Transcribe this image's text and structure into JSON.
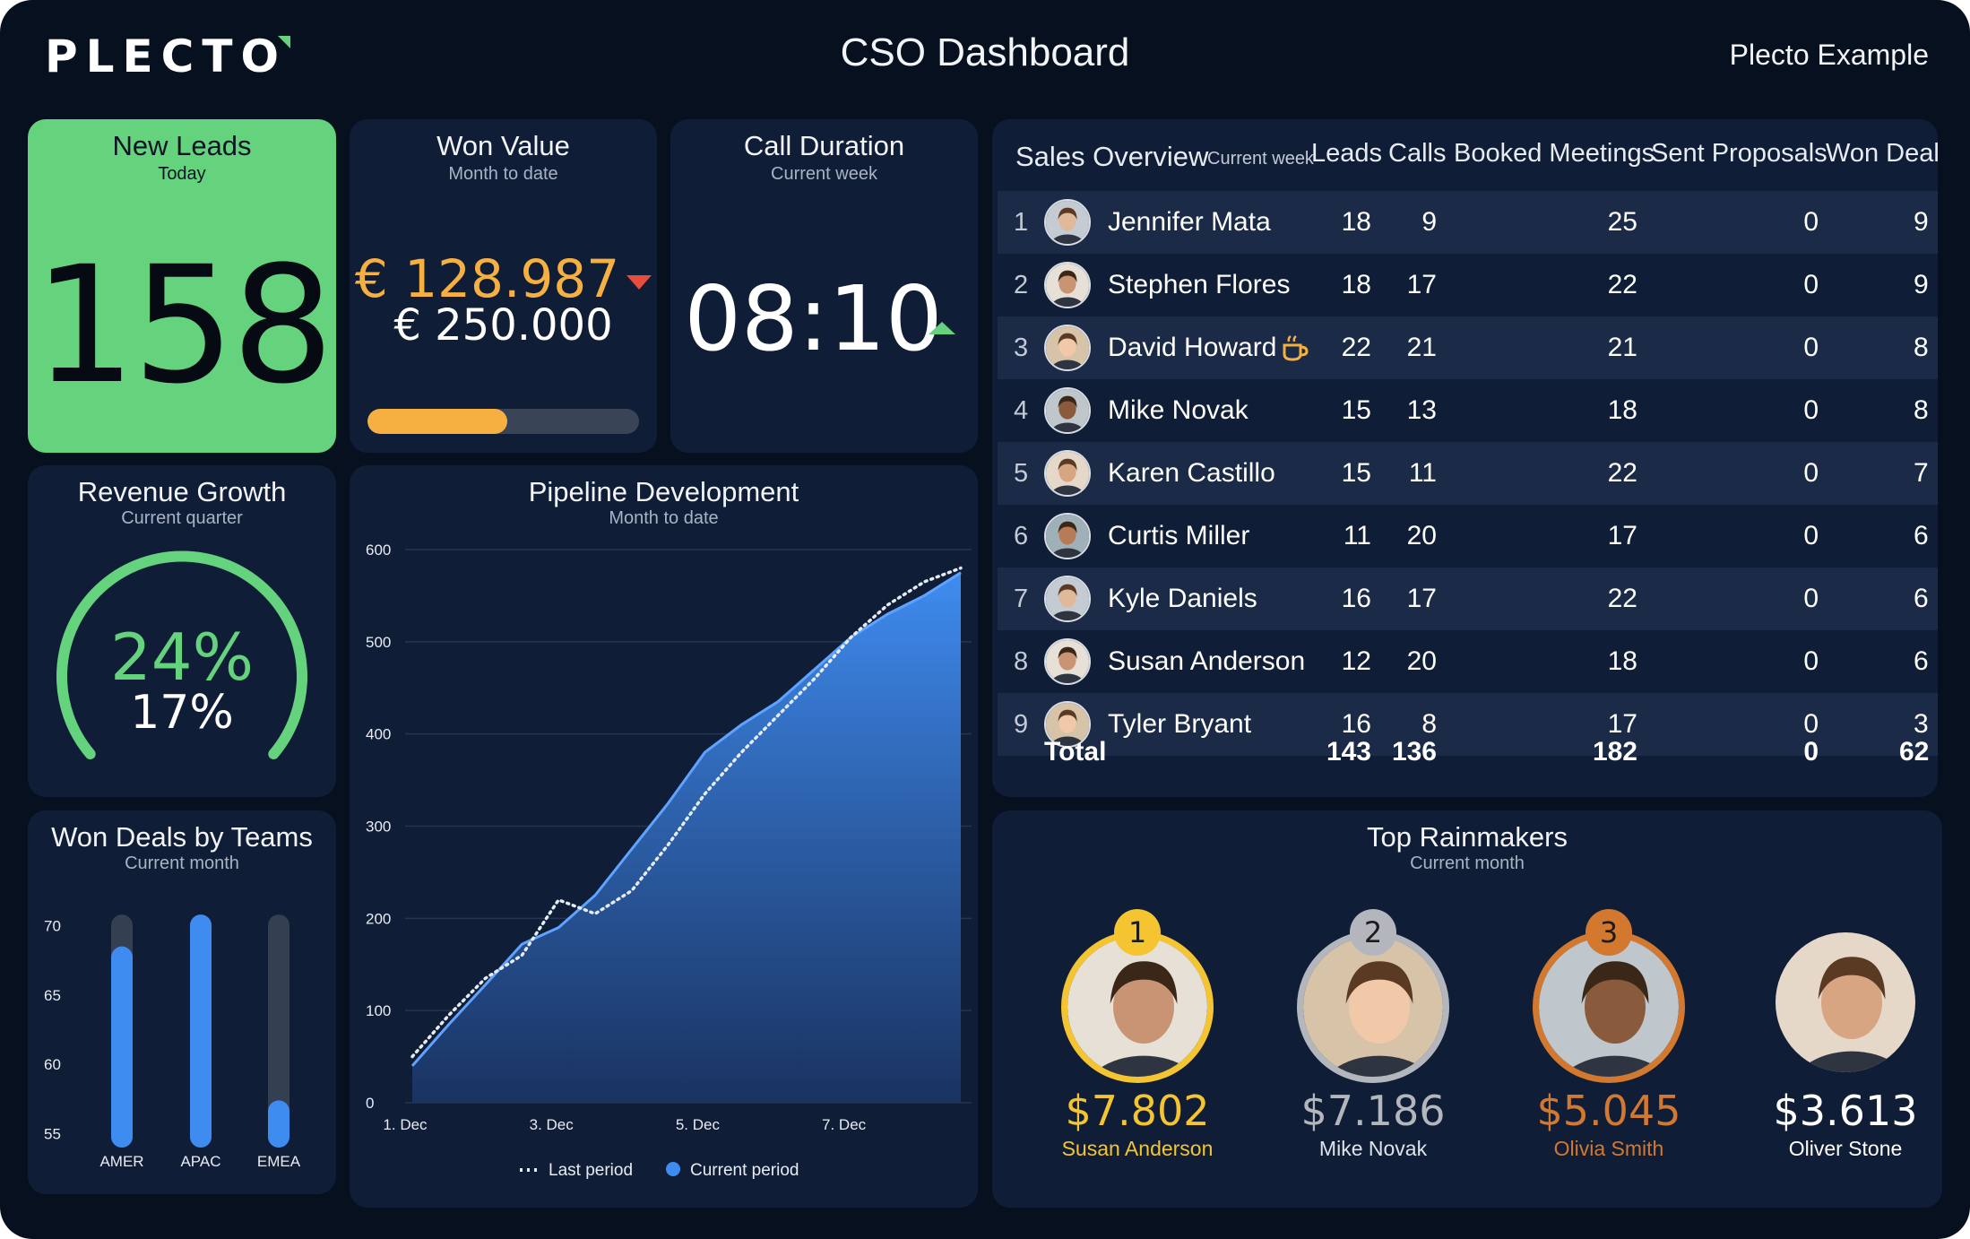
{
  "header": {
    "logo": "PLECTO",
    "title": "CSO Dashboard",
    "account": "Plecto Example"
  },
  "colors": {
    "background": "#07101f",
    "card": "#101d36",
    "accent_green": "#65d27e",
    "accent_orange": "#f5b041",
    "accent_blue": "#3f8cf0",
    "gold": "#f4c531",
    "silver": "#b3b7bd",
    "bronze": "#d2782f"
  },
  "new_leads": {
    "title": "New Leads",
    "subtitle": "Today",
    "value": "158"
  },
  "won_value": {
    "title": "Won Value",
    "subtitle": "Month to date",
    "value": "€ 128.987",
    "target": "€ 250.000",
    "trend": "down",
    "progress_fraction": 0.515
  },
  "call_duration": {
    "title": "Call Duration",
    "subtitle": "Current week",
    "value": "08:10",
    "trend": "up"
  },
  "revenue_growth": {
    "title": "Revenue Growth",
    "subtitle": "Current quarter",
    "value": "24%",
    "target": "17%"
  },
  "won_deals_teams": {
    "title": "Won Deals by Teams",
    "subtitle": "Current month",
    "chart_data": {
      "type": "bar",
      "categories": [
        "AMER",
        "APAC",
        "EMEA"
      ],
      "values": [
        68.5,
        70.8,
        57.4
      ],
      "max_values": [
        70.8,
        70.8,
        70.8
      ],
      "ylim": [
        54,
        71
      ],
      "yticks": [
        "70",
        "65",
        "60",
        "55"
      ],
      "ytick_values": [
        70,
        65,
        60,
        55
      ],
      "grid": false
    }
  },
  "pipeline": {
    "title": "Pipeline Development",
    "subtitle": "Month to date",
    "chart_data": {
      "type": "area",
      "xlabels": [
        "1. Dec",
        "3. Dec",
        "5. Dec",
        "7. Dec"
      ],
      "ylim": [
        0,
        600
      ],
      "yticks": [
        "600",
        "500",
        "400",
        "300",
        "200",
        "100",
        "0"
      ],
      "ytick_values": [
        600,
        500,
        400,
        300,
        200,
        100,
        0
      ],
      "x": [
        0,
        0.5,
        1,
        1.5,
        2,
        2.5,
        3,
        3.5,
        4,
        4.5,
        5,
        5.5,
        6,
        6.5,
        7,
        7.5
      ],
      "series": [
        {
          "name": "Current period",
          "style": "area",
          "values": [
            40,
            85,
            128,
            172,
            190,
            225,
            275,
            325,
            380,
            410,
            435,
            470,
            505,
            530,
            550,
            575
          ]
        },
        {
          "name": "Last period",
          "style": "dotted",
          "values": [
            50,
            95,
            135,
            160,
            220,
            205,
            230,
            280,
            335,
            380,
            420,
            460,
            505,
            540,
            565,
            580
          ]
        }
      ],
      "legend": [
        "Last period",
        "Current period"
      ],
      "legend_position": "bottom",
      "grid": true
    }
  },
  "sales": {
    "title": "Sales Overview",
    "subtitle": "Current week",
    "columns": [
      "Leads",
      "Calls",
      "Booked Meetings",
      "Sent Proposals",
      "Won Deals"
    ],
    "rows": [
      {
        "rank": "1",
        "name": "Jennifer Mata",
        "leads": "18",
        "calls": "9",
        "meetings": "25",
        "proposals": "0",
        "won": "9"
      },
      {
        "rank": "2",
        "name": "Stephen Flores",
        "leads": "18",
        "calls": "17",
        "meetings": "22",
        "proposals": "0",
        "won": "9"
      },
      {
        "rank": "3",
        "name": "David Howard",
        "leads": "22",
        "calls": "21",
        "meetings": "21",
        "proposals": "0",
        "won": "8",
        "icon": "coffee-icon"
      },
      {
        "rank": "4",
        "name": "Mike Novak",
        "leads": "15",
        "calls": "13",
        "meetings": "18",
        "proposals": "0",
        "won": "8"
      },
      {
        "rank": "5",
        "name": "Karen Castillo",
        "leads": "15",
        "calls": "11",
        "meetings": "22",
        "proposals": "0",
        "won": "7"
      },
      {
        "rank": "6",
        "name": "Curtis Miller",
        "leads": "11",
        "calls": "20",
        "meetings": "17",
        "proposals": "0",
        "won": "6"
      },
      {
        "rank": "7",
        "name": "Kyle Daniels",
        "leads": "16",
        "calls": "17",
        "meetings": "22",
        "proposals": "0",
        "won": "6"
      },
      {
        "rank": "8",
        "name": "Susan Anderson",
        "leads": "12",
        "calls": "20",
        "meetings": "18",
        "proposals": "0",
        "won": "6"
      },
      {
        "rank": "9",
        "name": "Tyler Bryant",
        "leads": "16",
        "calls": "8",
        "meetings": "17",
        "proposals": "0",
        "won": "3"
      }
    ],
    "total": {
      "label": "Total",
      "leads": "143",
      "calls": "136",
      "meetings": "182",
      "proposals": "0",
      "won": "62"
    }
  },
  "rainmakers": {
    "title": "Top Rainmakers",
    "subtitle": "Current month",
    "people": [
      {
        "rank": "1",
        "amount": "$7.802",
        "name": "Susan Anderson",
        "color": "#f4c531"
      },
      {
        "rank": "2",
        "amount": "$7.186",
        "name": "Mike Novak",
        "color": "#b3b7bd"
      },
      {
        "rank": "3",
        "amount": "$5.045",
        "name": "Olivia Smith",
        "color": "#d2782f"
      },
      {
        "rank": "",
        "amount": "$3.613",
        "name": "Oliver Stone",
        "color": "#ffffff"
      }
    ]
  }
}
